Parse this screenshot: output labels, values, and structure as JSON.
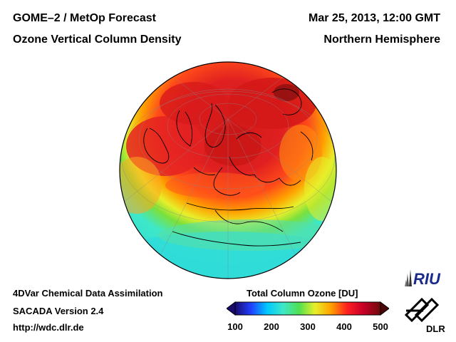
{
  "header": {
    "title_line1": "GOME–2 / MetOp Forecast",
    "title_line2": "Ozone Vertical Column Density",
    "date": "Mar 25, 2013, 12:00 GMT",
    "region": "Northern Hemisphere"
  },
  "footer": {
    "line1": "4DVar Chemical Data Assimilation",
    "line2": "SACADA Version 2.4",
    "line3": "http://wdc.dlr.de"
  },
  "colorbar": {
    "title": "Total Column Ozone [DU]",
    "ticks": [
      "100",
      "200",
      "300",
      "400",
      "500"
    ],
    "range": [
      100,
      500
    ],
    "colors": [
      "#1a0a6e",
      "#2040ff",
      "#00c8ff",
      "#3ee8c8",
      "#50e050",
      "#e8ef2a",
      "#ffa000",
      "#ff2020",
      "#c80028",
      "#6e0a0a"
    ]
  },
  "logos": {
    "riu": "RIU",
    "dlr": "DLR"
  },
  "map": {
    "projection": "orthographic",
    "center": "Northern Hemisphere, Europe/Arctic view"
  }
}
